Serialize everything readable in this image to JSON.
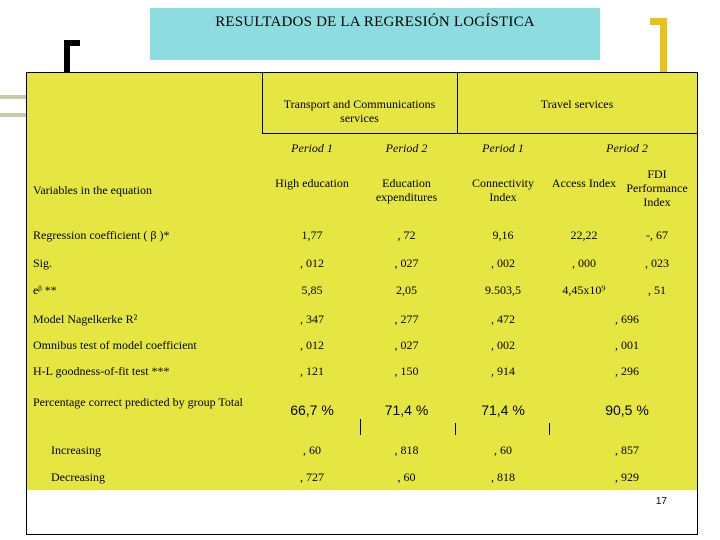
{
  "slide": {
    "title": "RESULTADOS DE LA REGRESIÓN LOGÍSTICA",
    "page_number": "17"
  },
  "table": {
    "group_transport": "Transport and Communications services",
    "group_travel": "Travel services",
    "period_1a": "Period 1",
    "period_2a": "Period 2",
    "period_1b": "Period 1",
    "period_2b": "Period 2",
    "row_variables": "Variables in the equation",
    "var_high_education": "High education",
    "var_education_exp": "Education expenditures",
    "var_connectivity": "Connectivity Index",
    "var_access": "Access Index",
    "var_fdi": "FDI Performance Index",
    "rows": [
      {
        "label": "Regression coefficient  ( β )*",
        "v": [
          "1,77",
          ", 72",
          "9,16",
          "22,22",
          "-, 67"
        ]
      },
      {
        "label": "Sig.",
        "v": [
          ", 012",
          ", 027",
          ", 002",
          ", 000",
          ", 023"
        ]
      },
      {
        "label": "eᵝ **",
        "v": [
          "5,85",
          "2,05",
          "9.503,5",
          "4,45x10⁹",
          ", 51"
        ]
      },
      {
        "label": "Model Nagelkerke R²",
        "v": [
          ", 347",
          ", 277",
          ", 472",
          ", 696"
        ]
      },
      {
        "label": "Omnibus test of model coefficient",
        "v": [
          ", 012",
          ", 027",
          ", 002",
          ", 001"
        ]
      },
      {
        "label": "H-L goodness-of-fit test ***",
        "v": [
          ", 121",
          ", 150",
          ", 914",
          ", 296"
        ]
      },
      {
        "label": "Percentage correct predicted by group Total",
        "v": [
          "66,7 %",
          "71,4 %",
          "71,4 %",
          "90,5 %"
        ]
      },
      {
        "label": "Increasing",
        "v": [
          ", 60",
          ", 818",
          ", 60",
          ", 857"
        ]
      },
      {
        "label": "Decreasing",
        "v": [
          ", 727",
          ", 60",
          ", 818",
          ", 929"
        ]
      }
    ]
  }
}
